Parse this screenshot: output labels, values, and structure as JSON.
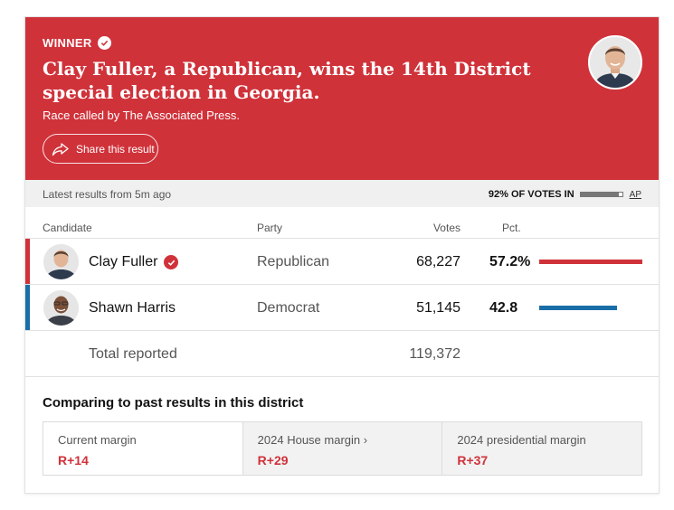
{
  "banner": {
    "winner_label": "WINNER",
    "headline": "Clay Fuller, a Republican, wins the 14th District special election in Georgia.",
    "called_by": "Race called by The Associated Press.",
    "share_label": "Share this result",
    "color": "#d0323a"
  },
  "status": {
    "updated": "Latest results from 5m ago",
    "reporting_label": "92% OF VOTES IN",
    "reporting_fraction": 0.92,
    "source_link": "AP"
  },
  "table": {
    "headers": {
      "candidate": "Candidate",
      "party": "Party",
      "votes": "Votes",
      "pct": "Pct."
    },
    "rows": [
      {
        "name": "Clay Fuller",
        "party": "Republican",
        "votes": "68,227",
        "pct": "57.2%",
        "pct_value": 57.2,
        "color": "#d0323a",
        "winner": true
      },
      {
        "name": "Shawn Harris",
        "party": "Democrat",
        "votes": "51,145",
        "pct": "42.8",
        "pct_value": 42.8,
        "color": "#1a6ea8",
        "winner": false
      }
    ],
    "total_label": "Total reported",
    "total_votes": "119,372"
  },
  "compare": {
    "title": "Comparing to past results in this district",
    "cells": [
      {
        "label": "Current margin",
        "value": "R+14"
      },
      {
        "label": "2024 House margin ›",
        "value": "R+29"
      },
      {
        "label": "2024 presidential margin",
        "value": "R+37"
      }
    ]
  }
}
